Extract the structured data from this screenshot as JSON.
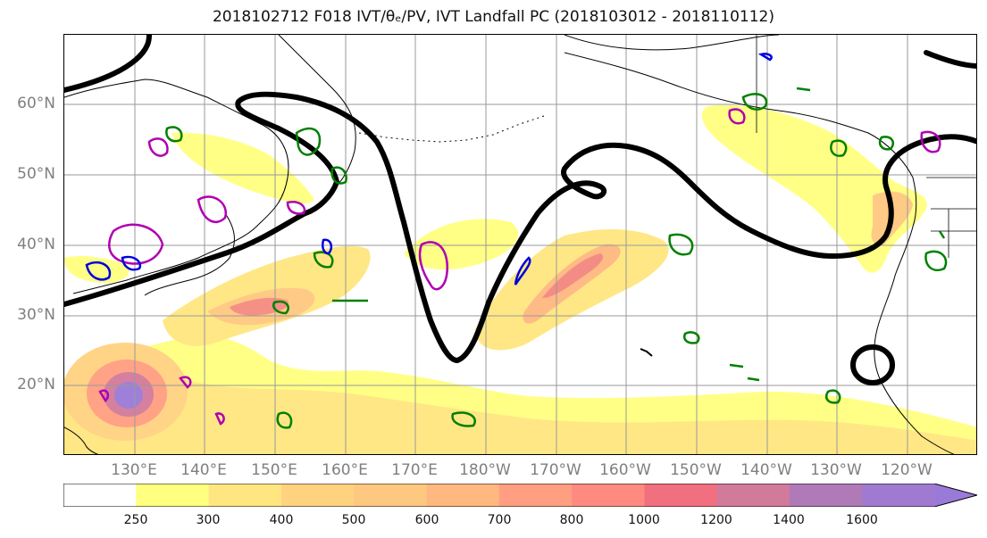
{
  "title": "2018102712 F018 IVT/θₑ/PV, IVT Landfall PC (2018103012 - 2018110112)",
  "lat_labels": [
    "60°N",
    "50°N",
    "40°N",
    "30°N",
    "20°N"
  ],
  "lon_labels": [
    "130°E",
    "140°E",
    "150°E",
    "160°E",
    "170°E",
    "180°W",
    "170°W",
    "160°W",
    "150°W",
    "140°W",
    "130°W",
    "120°W"
  ],
  "colorbar": {
    "ticks": [
      "250",
      "300",
      "400",
      "500",
      "600",
      "700",
      "800",
      "1000",
      "1200",
      "1400",
      "1600"
    ],
    "colors": [
      "#ffffff",
      "#ffff80",
      "#ffe680",
      "#ffd280",
      "#ffc880",
      "#ffb880",
      "#ff9e80",
      "#ff8b80",
      "#f07080",
      "#d27a9a",
      "#b07ab8",
      "#a07ad0",
      "#9a7ad8"
    ]
  },
  "legend_contours": {
    "ivt_contour_color": "#000000",
    "theta_e_color": "#008000",
    "pv_color_1": "#b000b0",
    "pv_color_2": "#0000dd"
  },
  "map_extent": {
    "lon_min": 120,
    "lon_max": 250,
    "lat_min": 10,
    "lat_max": 70
  }
}
